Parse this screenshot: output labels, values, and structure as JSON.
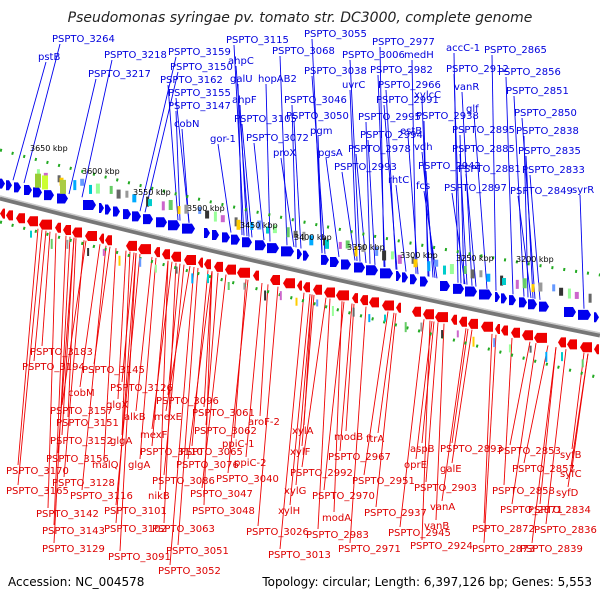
{
  "title": "Pseudomonas syringae pv. tomato str. DC3000, complete genome",
  "accession": "Accession: NC_004578",
  "topology": "Topology: circular; Length: 6,397,126 bp; Genes: 5,553",
  "colors": {
    "forward": "#0000ee",
    "reverse": "#ee0000",
    "backbone": "#888888",
    "tick": "#22aa22"
  },
  "kbp_ticks": [
    "3650 kbp",
    "3600 kbp",
    "3550 kbp",
    "3500 kbp",
    "3450 kbp",
    "3400 kbp",
    "3350 kbp",
    "3300 kbp",
    "3250 kbp",
    "3200 kbp"
  ],
  "forward_labels": [
    "PSPTO_3264",
    "pstB",
    "PSPTO_3218",
    "PSPTO_3217",
    "PSPTO_3159",
    "PSPTO_3150",
    "PSPTO_3162",
    "PSPTO_3155",
    "PSPTO_3147",
    "cobN",
    "PSPTO_3115",
    "ahpC",
    "galU",
    "ahpF",
    "PSPTO_3105",
    "gor-1",
    "hopAB2",
    "PSPTO_3068",
    "PSPTO_3055",
    "PSPTO_3038",
    "PSPTO_3046",
    "PSPTO_3050",
    "PSPTO_3072",
    "proX",
    "pgm",
    "uvrC",
    "PSPTO_3006",
    "pgsA",
    "PSPTO_2977",
    "PSPTO_2982",
    "PSPTO_2966",
    "PSPTO_2991",
    "PSPTO_2995",
    "PSPTO_2994",
    "PSPTO_2978",
    "PSPTO_2993",
    "medH",
    "xylcC",
    "estB",
    "vdh",
    "PSPTO_2938",
    "PSPTO_2942",
    "rhtC",
    "fcs",
    "accC-1",
    "PSPTO_2912",
    "vanR",
    "glf",
    "PSPTO_2895",
    "PSPTO_2885",
    "PSPTO_2881",
    "PSPTO_2897",
    "PSPTO_2865",
    "PSPTO_2856",
    "PSPTO_2851",
    "PSPTO_2850",
    "PSPTO_2838",
    "PSPTO_2835",
    "PSPTO_2833",
    "PSPTO_2849",
    "syrR"
  ],
  "reverse_labels": [
    "PSPTO_3183",
    "PSPTO_3194",
    "PSPTO_3145",
    "cobM",
    "PSPTO_3157",
    "PSPTO_3151",
    "PSPTO_3152",
    "PSPTO_3156",
    "PSPTO_3170",
    "PSPTO_3165",
    "glgX",
    "PSPTO_3126",
    "alkB",
    "mexF",
    "mexE",
    "glgA",
    "malQ",
    "glgA",
    "PSPTO_3128",
    "PSPTO_3116",
    "PSPTO_3142",
    "PSPTO_3143",
    "PSPTO_3129",
    "PSPTO_3102",
    "PSPTO_3101",
    "nikB",
    "PSPTO_3096",
    "PSPTO_3110",
    "PSPTO_3086",
    "PSPTO_3076",
    "PSPTO_3061",
    "PSPTO_3062",
    "PSPTO_3065",
    "PSPTO_3040",
    "PSPTO_3047",
    "PSPTO_3048",
    "PSPTO_3063",
    "PSPTO_3091",
    "PSPTO_3051",
    "PSPTO_3052",
    "aroF-2",
    "ppiC-1",
    "ppiC-2",
    "PSPTO_3026",
    "PSPTO_3013",
    "xylA",
    "xylF",
    "xylG",
    "xylH",
    "PSPTO_2992",
    "modB",
    "PSPTO_2967",
    "ftrA",
    "PSPTO_2970",
    "PSPTO_2951",
    "modA",
    "PSPTO_2983",
    "PSPTO_2971",
    "PSPTO_2937",
    "PSPTO_2945",
    "PSPTO_2924",
    "aspB",
    "oprE",
    "galE",
    "vanA",
    "vanB",
    "PSPTO_2903",
    "PSPTO_2893",
    "PSPTO_2853",
    "PSPTO_2857",
    "PSPTO_2858",
    "syfB",
    "syfC",
    "syfD",
    "PSPTO_2871",
    "PSPTO_2872",
    "PSPTO_2873",
    "PSPTO_2834",
    "PSPTO_2836",
    "PSPTO_2839"
  ]
}
